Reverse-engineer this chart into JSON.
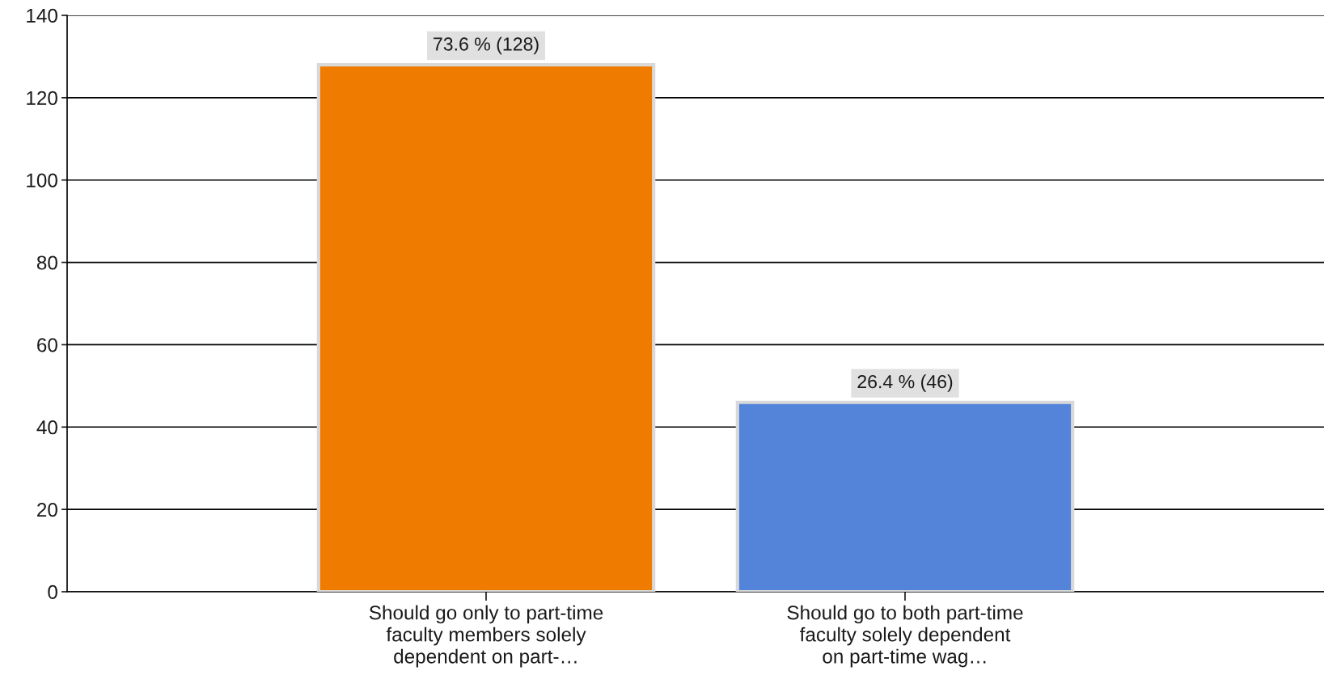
{
  "chart_data": {
    "type": "bar",
    "categories": [
      "Should go only to part-time\nfaculty members solely\ndependent on part-…",
      "Should go to both part-time\nfaculty solely dependent\non part-time wag…"
    ],
    "values": [
      128,
      46
    ],
    "colors": [
      "#ef7b00",
      "#5484d9"
    ],
    "value_labels": [
      "73.6 % (128)",
      "26.4 % (46)"
    ],
    "ylim": [
      0,
      140
    ],
    "yticks": [
      0,
      20,
      40,
      60,
      80,
      100,
      120,
      140
    ],
    "grid": "y"
  }
}
